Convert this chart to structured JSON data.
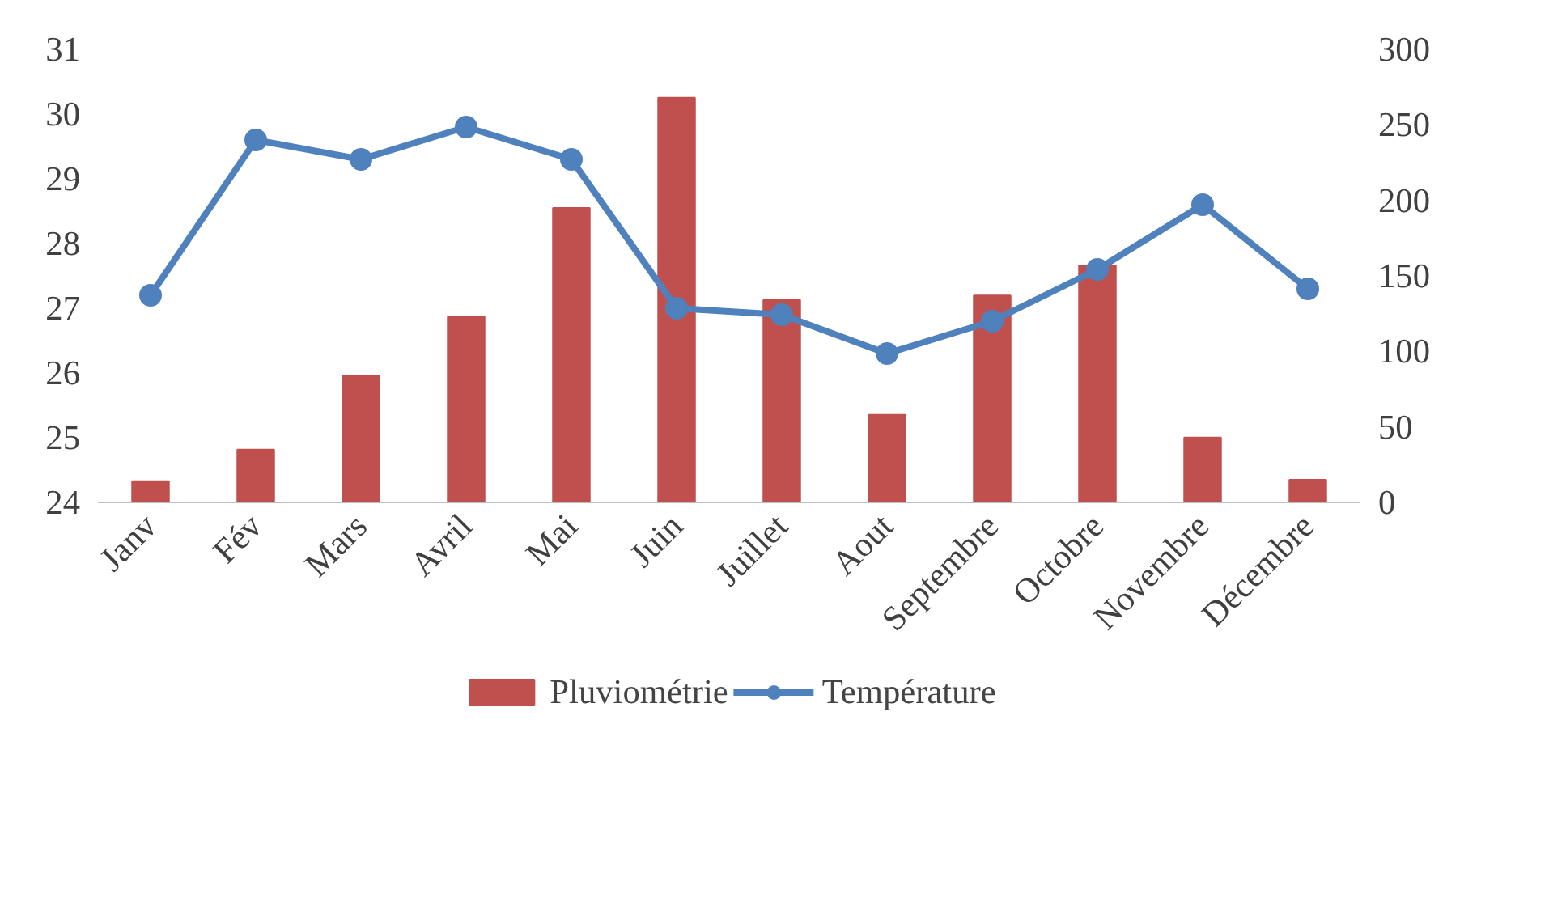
{
  "chart_data": {
    "type": "bar",
    "categories": [
      "Janv",
      "Fév",
      "Mars",
      "Avril",
      "Mai",
      "Juin",
      "Juillet",
      "Aout",
      "Septembre",
      "Octobre",
      "Novembre",
      "Décembre"
    ],
    "series": [
      {
        "name": "Pluviométrie",
        "axis": "y2",
        "color": "#c0504d",
        "values": [
          14,
          35,
          84,
          123,
          195,
          268,
          134,
          58,
          137,
          157,
          43,
          15
        ]
      },
      {
        "name": "Température",
        "type": "line",
        "axis": "y",
        "color": "#4f81bd",
        "marker": "circle",
        "values": [
          27.2,
          29.6,
          29.3,
          29.8,
          29.3,
          27.0,
          26.9,
          26.3,
          26.8,
          27.6,
          28.6,
          27.3
        ]
      }
    ],
    "ylim": [
      24,
      31
    ],
    "yticks": [
      24,
      25,
      26,
      27,
      28,
      29,
      30,
      31
    ],
    "y2lim": [
      0,
      300
    ],
    "y2ticks": [
      0,
      50,
      100,
      150,
      200,
      250,
      300
    ],
    "grid": false,
    "legend": "bottom"
  }
}
